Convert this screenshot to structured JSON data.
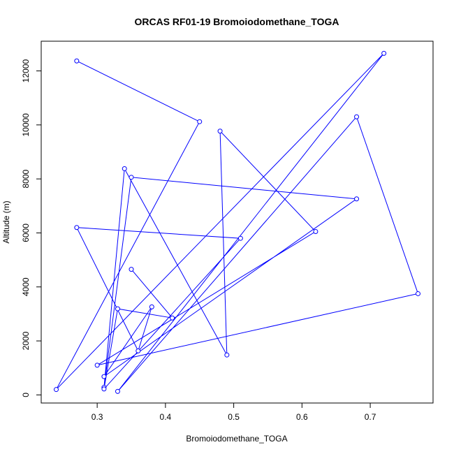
{
  "chart_data": {
    "type": "line",
    "title": "ORCAS RF01-19 Bromoiodomethane_TOGA",
    "xlabel": "Bromoiodomethane_TOGA",
    "ylabel": "Altitude (m)",
    "xlim": [
      0.218,
      0.792
    ],
    "ylim": [
      -300,
      13100
    ],
    "xticks": [
      0.3,
      0.4,
      0.5,
      0.6,
      0.7
    ],
    "xtick_labels": [
      "0.3",
      "0.4",
      "0.5",
      "0.6",
      "0.7"
    ],
    "yticks": [
      0,
      2000,
      4000,
      6000,
      8000,
      10000,
      12000
    ],
    "ytick_labels": [
      "0",
      "2000",
      "4000",
      "6000",
      "8000",
      "10000",
      "12000"
    ],
    "grid": false,
    "series": [
      {
        "color": "#0000ff",
        "marker": "open-circle",
        "x": [
          0.27,
          0.45,
          0.24,
          0.72,
          0.33,
          0.68,
          0.77,
          0.3,
          0.62,
          0.48,
          0.49,
          0.34,
          0.31,
          0.35,
          0.68,
          0.31,
          0.38,
          0.36,
          0.27,
          0.51,
          0.31,
          0.33,
          0.41,
          0.35
        ],
        "y": [
          12370,
          10120,
          200,
          12650,
          130,
          10300,
          3750,
          1100,
          6050,
          9770,
          1480,
          8380,
          280,
          8060,
          7260,
          680,
          3260,
          1630,
          6200,
          5800,
          220,
          3190,
          2850,
          4650
        ]
      }
    ]
  }
}
